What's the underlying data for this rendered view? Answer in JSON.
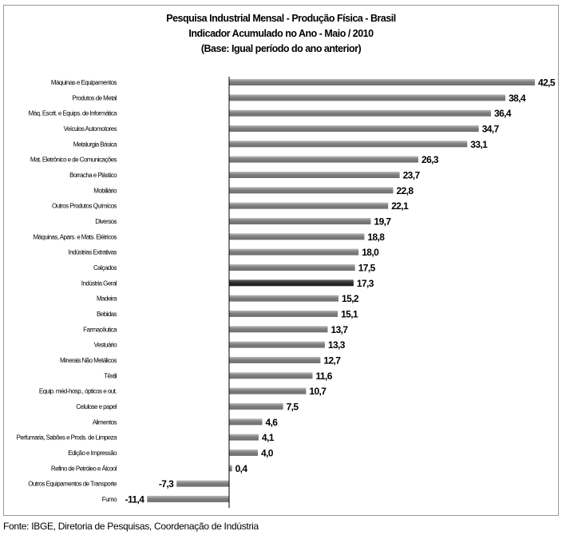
{
  "chart_data": {
    "type": "bar",
    "orientation": "horizontal",
    "title": "Pesquisa Industrial Mensal - Produção Física - Brasil",
    "subtitle": "Indicador Acumulado no Ano - Maio / 2010",
    "note": "(Base: Igual período do ano anterior)",
    "categories": [
      "Máquinas e Equipamentos",
      "Produtos de Metal",
      "Máq. Escrit. e Equips. de Informática",
      "Veículos Automotores",
      "Metalurgia Básica",
      "Mat. Eletrônico e de Comunicações",
      "Borracha e Plástico",
      "Mobiliário",
      "Outros Produtos Químicos",
      "Diversos",
      "Máquinas, Apars. e Mats. Elétricos",
      "Indústrias Extrativas",
      "Calçados",
      "Indústria Geral",
      "Madeira",
      "Bebidas",
      "Farmacêutica",
      "Vestuário",
      "Minerais Não Metálicos",
      "Têxtil",
      "Equip. méd-hosp., ópticos e out.",
      "Celulose e papel",
      "Alimentos",
      "Perfumaria, Sabões e Prods. de Limpeza",
      "Edição e Impressão",
      "Refino de Petróleo e Álcool",
      "Outros Equipamentos de Transporte",
      "Fumo"
    ],
    "values": [
      42.5,
      38.4,
      36.4,
      34.7,
      33.1,
      26.3,
      23.7,
      22.8,
      22.1,
      19.7,
      18.8,
      18.0,
      17.5,
      17.3,
      15.2,
      15.1,
      13.7,
      13.3,
      12.7,
      11.6,
      10.7,
      7.5,
      4.6,
      4.1,
      4.0,
      0.4,
      -7.3,
      -11.4
    ],
    "value_labels": [
      "42,5",
      "38,4",
      "36,4",
      "34,7",
      "33,1",
      "26,3",
      "23,7",
      "22,8",
      "22,1",
      "19,7",
      "18,8",
      "18,0",
      "17,5",
      "17,3",
      "15,2",
      "15,1",
      "13,7",
      "13,3",
      "12,7",
      "11,6",
      "10,7",
      "7,5",
      "4,6",
      "4,1",
      "4,0",
      "0,4",
      "-7,3",
      "-11,4"
    ],
    "highlight_category": "Indústria Geral",
    "xlim": [
      -11.4,
      42.5
    ],
    "grid": false,
    "legend": "none",
    "colors": {
      "bar": "#7f7f7f",
      "bar_dark": "#bdbdbd",
      "highlight": "#2b2b2b",
      "highlight_light": "#6a6a6a"
    }
  },
  "source": "Fonte: IBGE, Diretoria de Pesquisas, Coordenação de Indústria"
}
